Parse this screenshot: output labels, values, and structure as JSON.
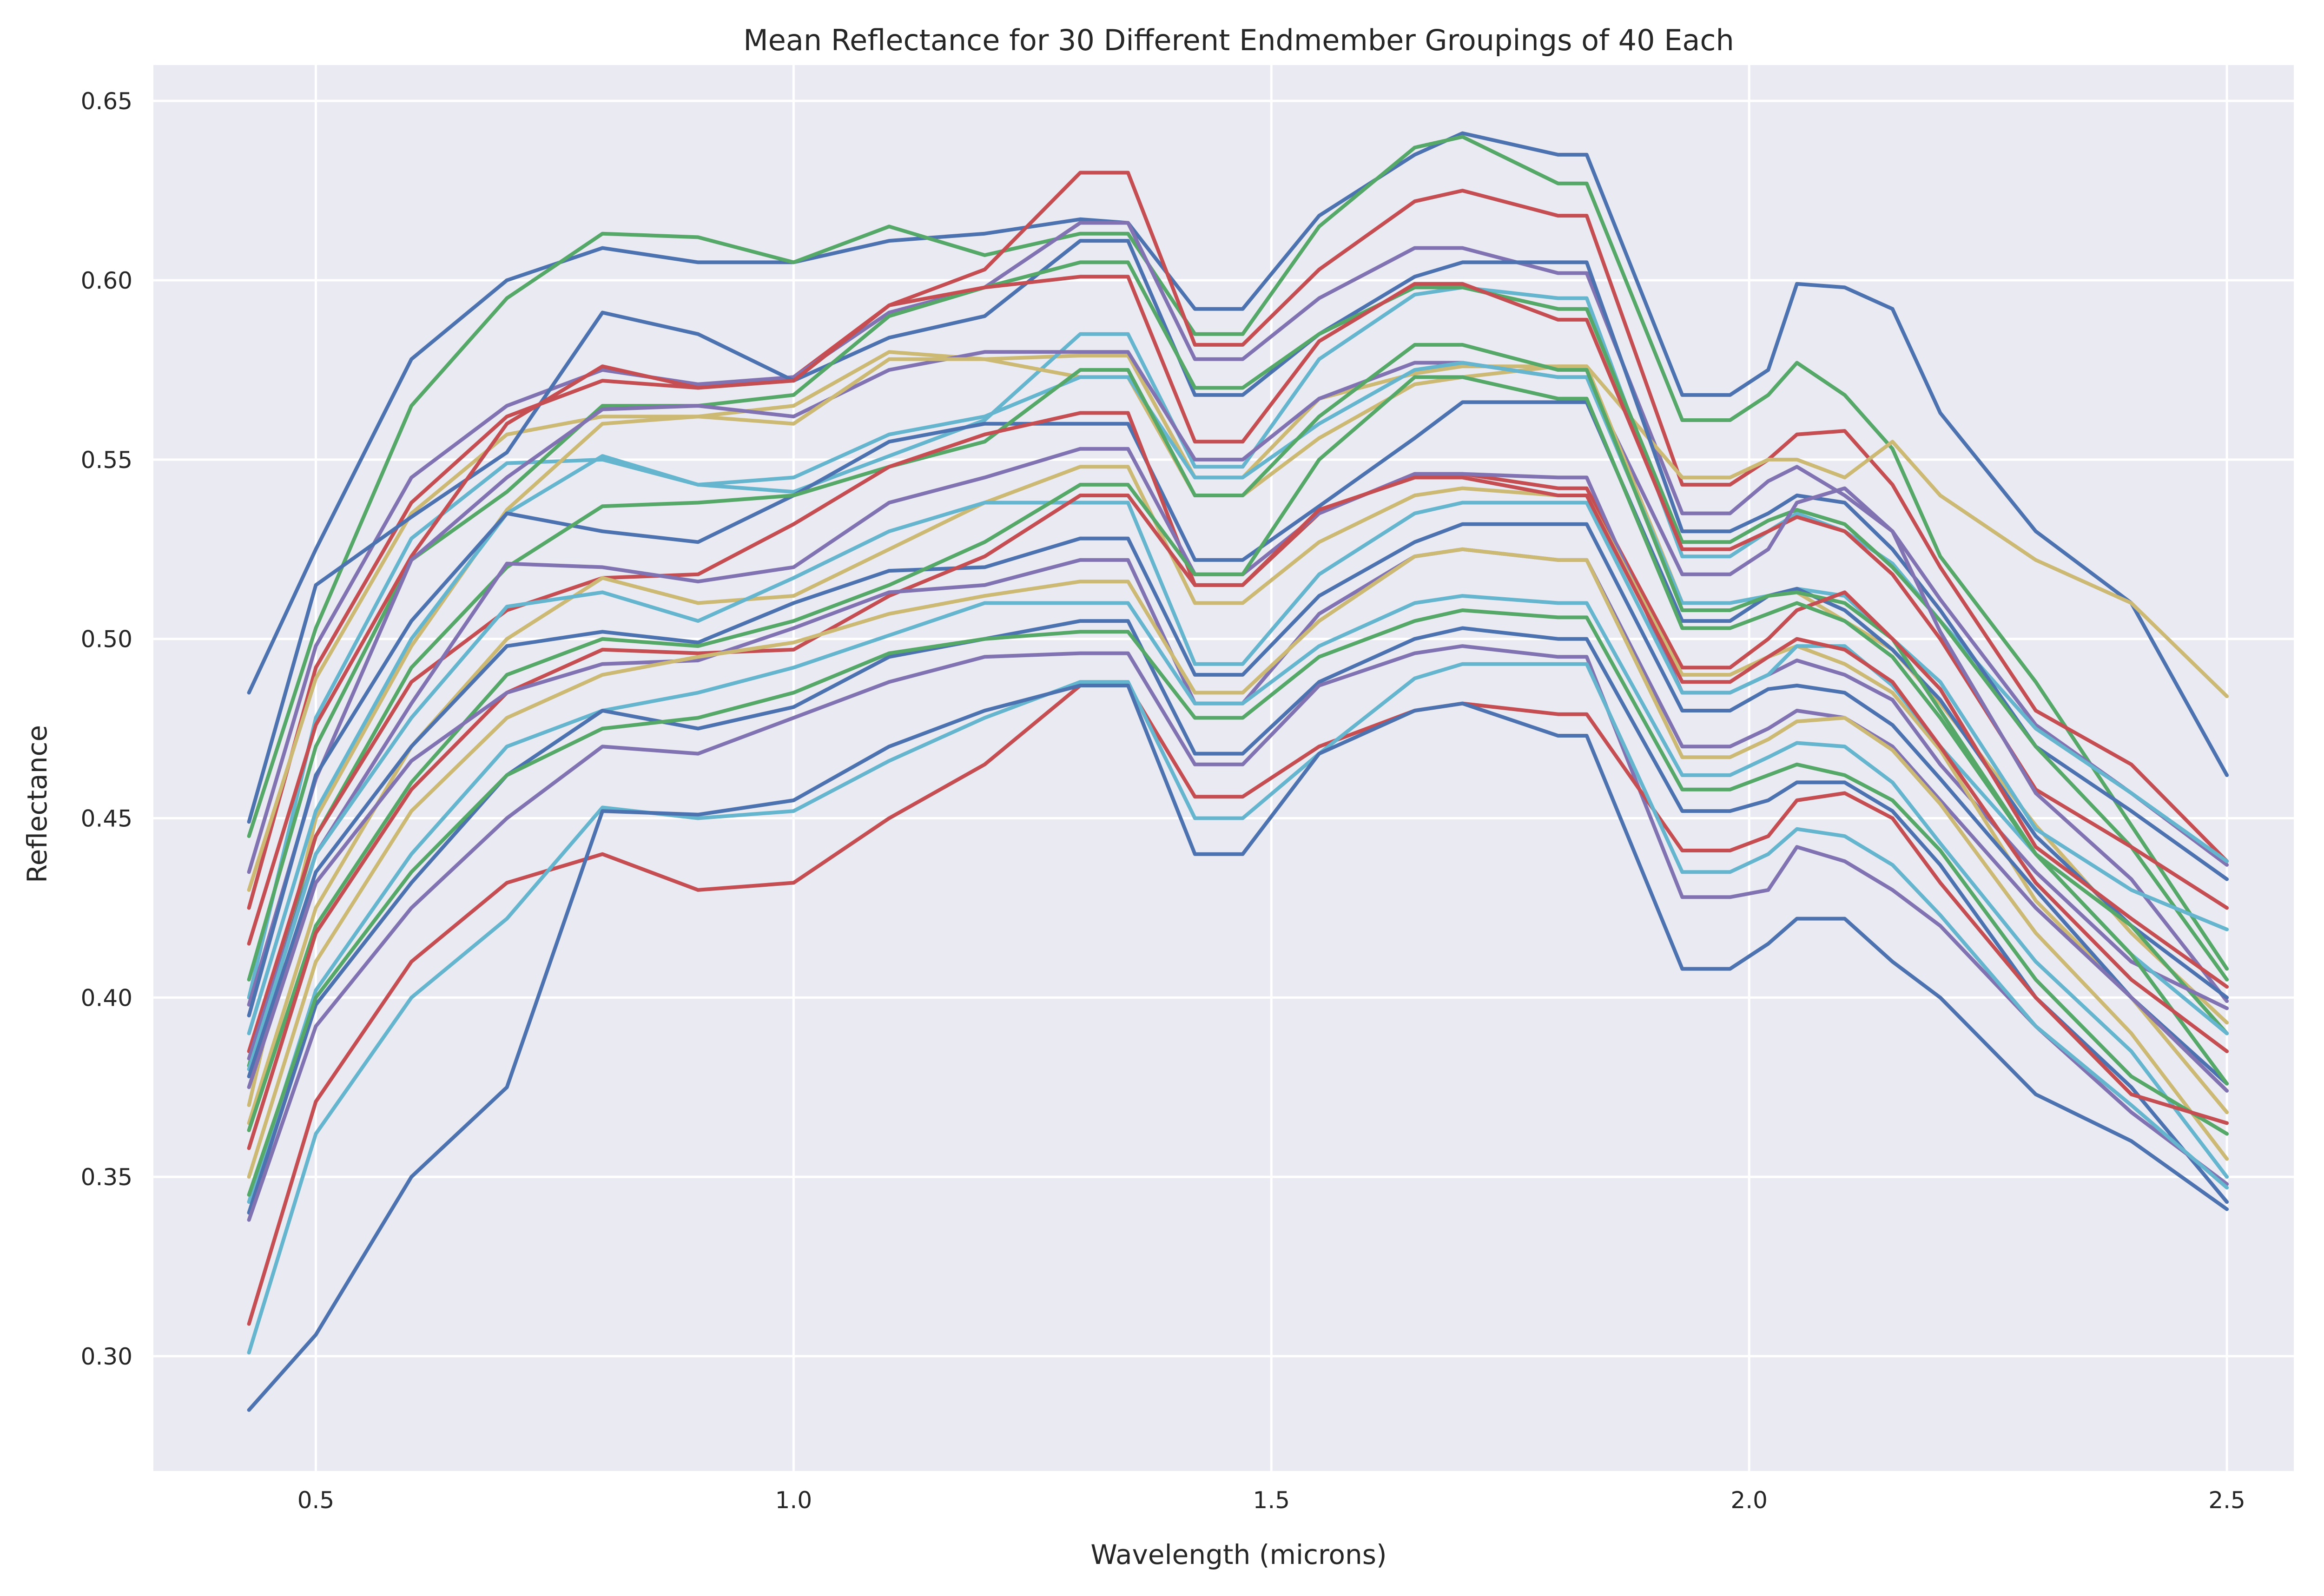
{
  "chart_data": {
    "type": "line",
    "title": "Mean Reflectance for 30 Different Endmember Groupings of 40 Each",
    "xlabel": "Wavelength (microns)",
    "ylabel": "Reflectance",
    "xlim": [
      0.33,
      2.57
    ],
    "ylim": [
      0.268,
      0.66
    ],
    "xticks": [
      0.5,
      1.0,
      1.5,
      2.0,
      2.5
    ],
    "xtick_labels": [
      "0.5",
      "1.0",
      "1.5",
      "2.0",
      "2.5"
    ],
    "yticks": [
      0.3,
      0.35,
      0.4,
      0.45,
      0.5,
      0.55,
      0.6,
      0.65
    ],
    "ytick_labels": [
      "0.30",
      "0.35",
      "0.40",
      "0.45",
      "0.50",
      "0.55",
      "0.60",
      "0.65"
    ],
    "grid": true,
    "background": "#eaeaf2",
    "gridColor": "#ffffff",
    "palette": [
      "#4c72b0",
      "#55a868",
      "#c44e52",
      "#8172b2",
      "#ccb974",
      "#64b5cd"
    ],
    "x": [
      0.43,
      0.5,
      0.6,
      0.7,
      0.8,
      0.9,
      1.0,
      1.1,
      1.2,
      1.3,
      1.35,
      1.42,
      1.47,
      1.55,
      1.65,
      1.7,
      1.8,
      1.83,
      1.93,
      1.98,
      2.02,
      2.05,
      2.1,
      2.15,
      2.2,
      2.3,
      2.4,
      2.5
    ],
    "series": [
      {
        "color": "#4c72b0",
        "values": [
          0.485,
          0.525,
          0.578,
          0.6,
          0.609,
          0.605,
          0.605,
          0.611,
          0.613,
          0.617,
          0.616,
          0.592,
          0.592,
          0.618,
          0.635,
          0.641,
          0.635,
          0.635,
          0.568,
          0.568,
          0.575,
          0.599,
          0.598,
          0.592,
          0.563,
          0.53,
          0.51,
          0.462
        ]
      },
      {
        "color": "#55a868",
        "values": [
          0.445,
          0.503,
          0.565,
          0.595,
          0.613,
          0.612,
          0.605,
          0.615,
          0.607,
          0.613,
          0.613,
          0.585,
          0.585,
          0.615,
          0.637,
          0.64,
          0.627,
          0.627,
          0.561,
          0.561,
          0.568,
          0.577,
          0.568,
          0.553,
          0.523,
          0.488,
          0.448,
          0.408
        ]
      },
      {
        "color": "#c44e52",
        "values": [
          0.425,
          0.492,
          0.538,
          0.562,
          0.572,
          0.57,
          0.573,
          0.593,
          0.603,
          0.63,
          0.63,
          0.582,
          0.582,
          0.603,
          0.622,
          0.625,
          0.618,
          0.618,
          0.543,
          0.543,
          0.55,
          0.557,
          0.558,
          0.543,
          0.52,
          0.48,
          0.465,
          0.438
        ]
      },
      {
        "color": "#8172b2",
        "values": [
          0.435,
          0.498,
          0.545,
          0.565,
          0.575,
          0.571,
          0.573,
          0.591,
          0.598,
          0.616,
          0.616,
          0.578,
          0.578,
          0.595,
          0.609,
          0.609,
          0.602,
          0.602,
          0.535,
          0.535,
          0.544,
          0.548,
          0.54,
          0.53,
          0.511,
          0.476,
          0.457,
          0.437
        ]
      },
      {
        "color": "#ccb974",
        "values": [
          0.43,
          0.489,
          0.535,
          0.557,
          0.562,
          0.562,
          0.565,
          0.58,
          0.578,
          0.579,
          0.579,
          0.545,
          0.545,
          0.567,
          0.574,
          0.576,
          0.576,
          0.576,
          0.545,
          0.545,
          0.55,
          0.55,
          0.545,
          0.555,
          0.54,
          0.522,
          0.51,
          0.484
        ]
      },
      {
        "color": "#64b5cd",
        "values": [
          0.4,
          0.478,
          0.528,
          0.549,
          0.55,
          0.543,
          0.541,
          0.551,
          0.561,
          0.585,
          0.585,
          0.548,
          0.548,
          0.578,
          0.596,
          0.598,
          0.595,
          0.595,
          0.523,
          0.523,
          0.53,
          0.535,
          0.53,
          0.521,
          0.505,
          0.475,
          0.457,
          0.438
        ]
      },
      {
        "color": "#4c72b0",
        "values": [
          0.449,
          0.515,
          0.534,
          0.552,
          0.591,
          0.585,
          0.572,
          0.584,
          0.59,
          0.611,
          0.611,
          0.568,
          0.568,
          0.585,
          0.601,
          0.605,
          0.605,
          0.605,
          0.53,
          0.53,
          0.535,
          0.54,
          0.538,
          0.525,
          0.508,
          0.47,
          0.452,
          0.433
        ]
      },
      {
        "color": "#55a868",
        "values": [
          0.405,
          0.47,
          0.522,
          0.541,
          0.565,
          0.565,
          0.568,
          0.59,
          0.598,
          0.605,
          0.605,
          0.57,
          0.57,
          0.585,
          0.598,
          0.598,
          0.592,
          0.592,
          0.527,
          0.527,
          0.533,
          0.536,
          0.532,
          0.52,
          0.505,
          0.47,
          0.442,
          0.405
        ]
      },
      {
        "color": "#c44e52",
        "values": [
          0.415,
          0.476,
          0.523,
          0.56,
          0.576,
          0.57,
          0.572,
          0.593,
          0.598,
          0.601,
          0.601,
          0.555,
          0.555,
          0.583,
          0.599,
          0.599,
          0.589,
          0.589,
          0.525,
          0.525,
          0.53,
          0.534,
          0.53,
          0.518,
          0.5,
          0.458,
          0.442,
          0.425
        ]
      },
      {
        "color": "#8172b2",
        "values": [
          0.398,
          0.461,
          0.522,
          0.545,
          0.564,
          0.565,
          0.562,
          0.575,
          0.58,
          0.58,
          0.58,
          0.55,
          0.55,
          0.567,
          0.577,
          0.577,
          0.573,
          0.573,
          0.518,
          0.518,
          0.525,
          0.538,
          0.542,
          0.53,
          0.502,
          0.457,
          0.433,
          0.399
        ]
      },
      {
        "color": "#ccb974",
        "values": [
          0.37,
          0.45,
          0.498,
          0.536,
          0.56,
          0.562,
          0.56,
          0.578,
          0.578,
          0.573,
          0.573,
          0.54,
          0.54,
          0.556,
          0.571,
          0.573,
          0.576,
          0.576,
          0.51,
          0.51,
          0.512,
          0.513,
          0.505,
          0.497,
          0.482,
          0.448,
          0.418,
          0.393
        ]
      },
      {
        "color": "#64b5cd",
        "values": [
          0.39,
          0.452,
          0.5,
          0.535,
          0.551,
          0.543,
          0.545,
          0.557,
          0.562,
          0.573,
          0.573,
          0.545,
          0.545,
          0.56,
          0.575,
          0.577,
          0.573,
          0.573,
          0.51,
          0.51,
          0.512,
          0.514,
          0.512,
          0.5,
          0.488,
          0.447,
          0.43,
          0.419
        ]
      },
      {
        "color": "#4c72b0",
        "values": [
          0.395,
          0.462,
          0.505,
          0.535,
          0.53,
          0.527,
          0.54,
          0.555,
          0.56,
          0.56,
          0.56,
          0.522,
          0.522,
          0.537,
          0.556,
          0.566,
          0.566,
          0.566,
          0.505,
          0.505,
          0.512,
          0.514,
          0.508,
          0.497,
          0.483,
          0.445,
          0.42,
          0.4
        ]
      },
      {
        "color": "#55a868",
        "values": [
          0.381,
          0.445,
          0.492,
          0.52,
          0.537,
          0.538,
          0.54,
          0.548,
          0.555,
          0.575,
          0.575,
          0.54,
          0.54,
          0.562,
          0.582,
          0.582,
          0.575,
          0.575,
          0.508,
          0.508,
          0.512,
          0.513,
          0.51,
          0.5,
          0.48,
          0.44,
          0.42,
          0.39
        ]
      },
      {
        "color": "#c44e52",
        "values": [
          0.385,
          0.445,
          0.488,
          0.508,
          0.517,
          0.518,
          0.532,
          0.548,
          0.557,
          0.563,
          0.563,
          0.515,
          0.515,
          0.535,
          0.546,
          0.546,
          0.542,
          0.542,
          0.492,
          0.492,
          0.5,
          0.508,
          0.513,
          0.5,
          0.486,
          0.442,
          0.422,
          0.403
        ]
      },
      {
        "color": "#8172b2",
        "values": [
          0.383,
          0.44,
          0.482,
          0.521,
          0.52,
          0.516,
          0.52,
          0.538,
          0.545,
          0.553,
          0.553,
          0.518,
          0.518,
          0.535,
          0.546,
          0.546,
          0.545,
          0.545,
          0.485,
          0.485,
          0.49,
          0.494,
          0.49,
          0.483,
          0.465,
          0.435,
          0.41,
          0.397
        ]
      },
      {
        "color": "#ccb974",
        "values": [
          0.365,
          0.425,
          0.47,
          0.5,
          0.517,
          0.51,
          0.512,
          0.525,
          0.538,
          0.548,
          0.548,
          0.51,
          0.51,
          0.527,
          0.54,
          0.542,
          0.54,
          0.54,
          0.49,
          0.49,
          0.495,
          0.498,
          0.493,
          0.485,
          0.469,
          0.427,
          0.4,
          0.368
        ]
      },
      {
        "color": "#64b5cd",
        "values": [
          0.38,
          0.44,
          0.478,
          0.509,
          0.513,
          0.505,
          0.517,
          0.53,
          0.538,
          0.538,
          0.538,
          0.493,
          0.493,
          0.518,
          0.535,
          0.538,
          0.538,
          0.538,
          0.485,
          0.485,
          0.49,
          0.498,
          0.498,
          0.487,
          0.47,
          0.44,
          0.412,
          0.39
        ]
      },
      {
        "color": "#4c72b0",
        "values": [
          0.378,
          0.435,
          0.47,
          0.498,
          0.502,
          0.499,
          0.51,
          0.519,
          0.52,
          0.528,
          0.528,
          0.49,
          0.49,
          0.512,
          0.527,
          0.532,
          0.532,
          0.532,
          0.48,
          0.48,
          0.486,
          0.487,
          0.485,
          0.476,
          0.461,
          0.43,
          0.4,
          0.376
        ]
      },
      {
        "color": "#55a868",
        "values": [
          0.363,
          0.42,
          0.46,
          0.49,
          0.5,
          0.498,
          0.505,
          0.515,
          0.527,
          0.543,
          0.543,
          0.518,
          0.518,
          0.55,
          0.573,
          0.573,
          0.567,
          0.567,
          0.503,
          0.503,
          0.507,
          0.51,
          0.505,
          0.495,
          0.478,
          0.44,
          0.412,
          0.376
        ]
      },
      {
        "color": "#c44e52",
        "values": [
          0.358,
          0.418,
          0.458,
          0.485,
          0.497,
          0.496,
          0.497,
          0.512,
          0.523,
          0.54,
          0.54,
          0.515,
          0.515,
          0.536,
          0.545,
          0.545,
          0.54,
          0.54,
          0.488,
          0.488,
          0.495,
          0.5,
          0.497,
          0.488,
          0.47,
          0.432,
          0.405,
          0.385
        ]
      },
      {
        "color": "#8172b2",
        "values": [
          0.375,
          0.432,
          0.466,
          0.485,
          0.493,
          0.494,
          0.503,
          0.513,
          0.515,
          0.522,
          0.522,
          0.482,
          0.482,
          0.507,
          0.523,
          0.525,
          0.522,
          0.522,
          0.47,
          0.47,
          0.475,
          0.48,
          0.478,
          0.47,
          0.455,
          0.425,
          0.4,
          0.374
        ]
      },
      {
        "color": "#ccb974",
        "values": [
          0.35,
          0.41,
          0.452,
          0.478,
          0.49,
          0.495,
          0.499,
          0.507,
          0.512,
          0.516,
          0.516,
          0.485,
          0.485,
          0.505,
          0.523,
          0.525,
          0.522,
          0.522,
          0.467,
          0.467,
          0.472,
          0.477,
          0.478,
          0.469,
          0.454,
          0.418,
          0.39,
          0.355
        ]
      },
      {
        "color": "#64b5cd",
        "values": [
          0.343,
          0.402,
          0.44,
          0.47,
          0.48,
          0.485,
          0.492,
          0.501,
          0.51,
          0.51,
          0.51,
          0.482,
          0.482,
          0.498,
          0.51,
          0.512,
          0.51,
          0.51,
          0.462,
          0.462,
          0.467,
          0.471,
          0.47,
          0.46,
          0.443,
          0.41,
          0.385,
          0.35
        ]
      },
      {
        "color": "#4c72b0",
        "values": [
          0.34,
          0.398,
          0.432,
          0.462,
          0.48,
          0.475,
          0.481,
          0.495,
          0.5,
          0.505,
          0.505,
          0.468,
          0.468,
          0.488,
          0.5,
          0.503,
          0.5,
          0.5,
          0.452,
          0.452,
          0.455,
          0.46,
          0.46,
          0.452,
          0.437,
          0.4,
          0.375,
          0.343
        ]
      },
      {
        "color": "#55a868",
        "values": [
          0.345,
          0.4,
          0.435,
          0.462,
          0.475,
          0.478,
          0.485,
          0.496,
          0.5,
          0.502,
          0.502,
          0.478,
          0.478,
          0.495,
          0.505,
          0.508,
          0.506,
          0.506,
          0.458,
          0.458,
          0.462,
          0.465,
          0.462,
          0.455,
          0.441,
          0.405,
          0.378,
          0.362
        ]
      },
      {
        "color": "#8172b2",
        "values": [
          0.338,
          0.392,
          0.425,
          0.45,
          0.47,
          0.468,
          0.478,
          0.488,
          0.495,
          0.496,
          0.496,
          0.465,
          0.465,
          0.487,
          0.496,
          0.498,
          0.495,
          0.495,
          0.428,
          0.428,
          0.43,
          0.442,
          0.438,
          0.43,
          0.42,
          0.392,
          0.368,
          0.348
        ]
      },
      {
        "color": "#c44e52",
        "values": [
          0.309,
          0.371,
          0.41,
          0.432,
          0.44,
          0.43,
          0.432,
          0.45,
          0.465,
          0.487,
          0.487,
          0.456,
          0.456,
          0.47,
          0.48,
          0.482,
          0.479,
          0.479,
          0.441,
          0.441,
          0.445,
          0.455,
          0.457,
          0.45,
          0.432,
          0.4,
          0.373,
          0.365
        ]
      },
      {
        "color": "#64b5cd",
        "values": [
          0.301,
          0.362,
          0.4,
          0.422,
          0.453,
          0.45,
          0.452,
          0.466,
          0.478,
          0.488,
          0.488,
          0.45,
          0.45,
          0.468,
          0.489,
          0.493,
          0.493,
          0.493,
          0.435,
          0.435,
          0.44,
          0.447,
          0.445,
          0.437,
          0.423,
          0.392,
          0.37,
          0.347
        ]
      },
      {
        "color": "#4c72b0",
        "values": [
          0.285,
          0.306,
          0.35,
          0.375,
          0.452,
          0.451,
          0.455,
          0.47,
          0.48,
          0.487,
          0.487,
          0.44,
          0.44,
          0.468,
          0.48,
          0.482,
          0.473,
          0.473,
          0.408,
          0.408,
          0.415,
          0.422,
          0.422,
          0.41,
          0.4,
          0.373,
          0.36,
          0.341
        ]
      }
    ]
  }
}
